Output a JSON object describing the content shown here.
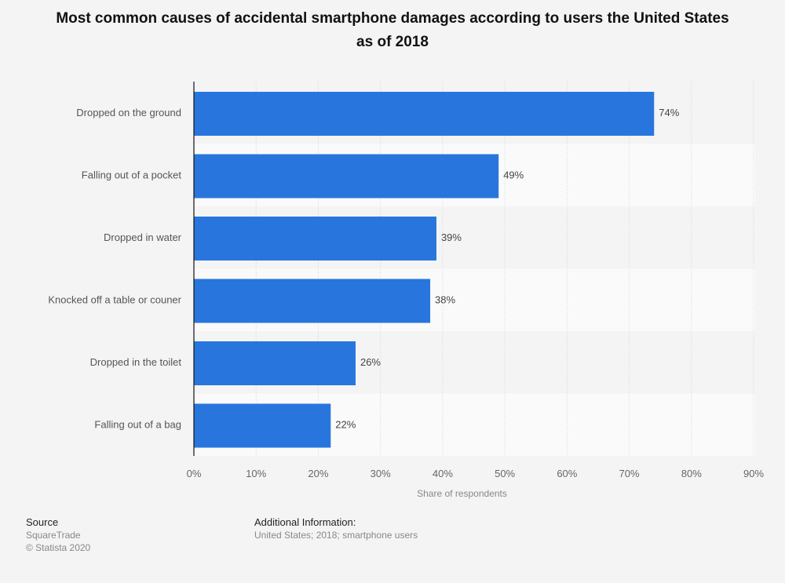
{
  "chart_data": {
    "type": "bar",
    "orientation": "horizontal",
    "title": "Most common causes of accidental smartphone damages according to users the United States as of 2018",
    "categories": [
      "Dropped on the ground",
      "Falling out of a pocket",
      "Dropped in water",
      "Knocked off a table or couner",
      "Dropped in the toilet",
      "Falling out of a bag"
    ],
    "values": [
      74,
      49,
      39,
      38,
      26,
      22
    ],
    "data_labels": [
      "74%",
      "49%",
      "39%",
      "38%",
      "26%",
      "22%"
    ],
    "xlabel": "Share of respondents",
    "ylabel": "",
    "xlim": [
      0,
      90
    ],
    "xticks": [
      0,
      10,
      20,
      30,
      40,
      50,
      60,
      70,
      80,
      90
    ],
    "xtick_labels": [
      "0%",
      "10%",
      "20%",
      "30%",
      "40%",
      "50%",
      "60%",
      "70%",
      "80%",
      "90%"
    ],
    "grid": true,
    "bar_color": "#2876dd"
  },
  "footer": {
    "source_heading": "Source",
    "source": "SquareTrade",
    "copyright": "© Statista 2020",
    "info_heading": "Additional Information:",
    "info": "United States; 2018; smartphone users"
  }
}
